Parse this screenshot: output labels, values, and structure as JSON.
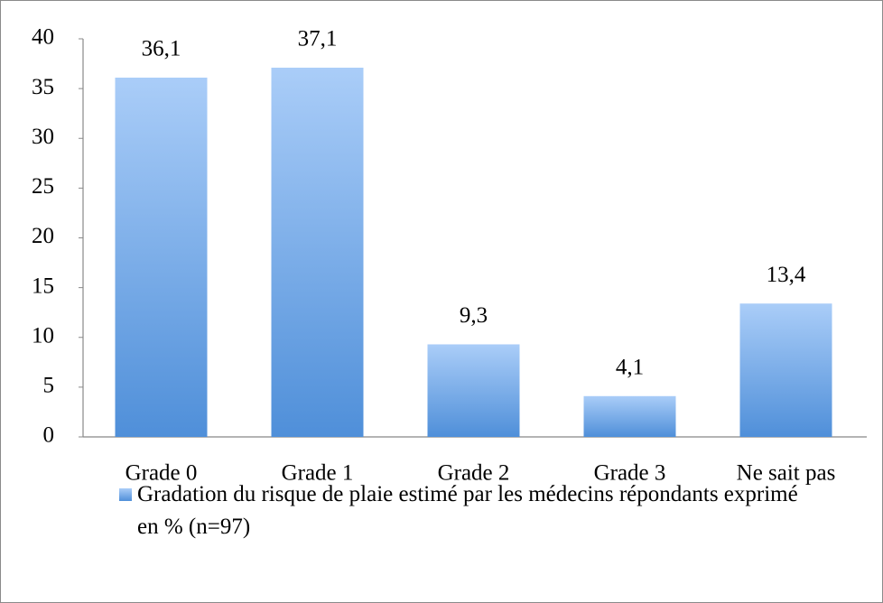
{
  "chart_data": {
    "type": "bar",
    "categories": [
      "Grade 0",
      "Grade 1",
      "Grade 2",
      "Grade 3",
      "Ne sait pas"
    ],
    "series": [
      {
        "name": "Gradation du risque de plaie estimé par les médecins répondants exprimé en % (n=97)",
        "color": "#4f8fd9",
        "values": [
          36.1,
          37.1,
          9.3,
          4.1,
          13.4
        ],
        "value_labels": [
          "36,1",
          "37,1",
          "9,3",
          "4,1",
          "13,4"
        ]
      }
    ],
    "ylim": [
      0,
      40
    ],
    "yticks": [
      0,
      5,
      10,
      15,
      20,
      25,
      30,
      35,
      40
    ],
    "grid": false,
    "legend": "bottom"
  }
}
